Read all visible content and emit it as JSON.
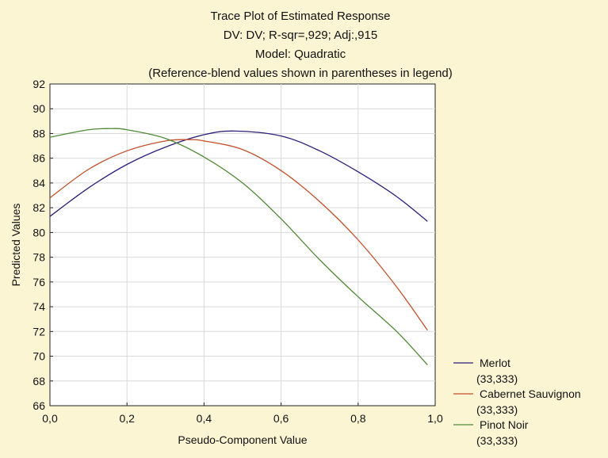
{
  "chart_data": {
    "type": "line",
    "title_lines": [
      "Trace Plot of Estimated Response",
      "DV: DV; R-sqr=,929; Adj:,915",
      "Model: Quadratic",
      "(Reference-blend values shown in parentheses in legend)"
    ],
    "xlabel": "Pseudo-Component Value",
    "ylabel": "Predicted Values",
    "xlim": [
      0,
      1
    ],
    "ylim": [
      66,
      92
    ],
    "grid": true,
    "legend_position": "bottom-right",
    "x_tick_labels": [
      "0,0",
      "0,2",
      "0,4",
      "0,6",
      "0,8",
      "1,0"
    ],
    "y_tick_labels": [
      "66",
      "68",
      "70",
      "72",
      "74",
      "76",
      "78",
      "80",
      "82",
      "84",
      "86",
      "88",
      "90",
      "92"
    ],
    "x_ticks": [
      0,
      0.2,
      0.4,
      0.6,
      0.8,
      1.0
    ],
    "y_ticks": [
      66,
      68,
      70,
      72,
      74,
      76,
      78,
      80,
      82,
      84,
      86,
      88,
      90,
      92
    ],
    "series": [
      {
        "name": "Merlot",
        "reference": "(33,333)",
        "color": "#2b1f7a",
        "x": [
          0.0,
          0.1,
          0.2,
          0.3,
          0.4,
          0.48,
          0.6,
          0.7,
          0.8,
          0.9,
          0.98
        ],
        "y": [
          81.3,
          83.6,
          85.5,
          86.9,
          87.9,
          88.2,
          87.8,
          86.6,
          84.9,
          82.9,
          80.9
        ]
      },
      {
        "name": "Cabernet Sauvignon",
        "reference": "(33,333)",
        "color": "#c0502a",
        "x": [
          0.0,
          0.1,
          0.2,
          0.3,
          0.36,
          0.4,
          0.5,
          0.6,
          0.7,
          0.8,
          0.9,
          0.98
        ],
        "y": [
          82.8,
          85.1,
          86.6,
          87.4,
          87.5,
          87.4,
          86.7,
          85.0,
          82.5,
          79.4,
          75.6,
          72.1
        ]
      },
      {
        "name": "Pinot Noir",
        "reference": "(33,333)",
        "color": "#4f8a36",
        "x": [
          0.0,
          0.1,
          0.16,
          0.2,
          0.3,
          0.4,
          0.5,
          0.6,
          0.7,
          0.8,
          0.9,
          0.98
        ],
        "y": [
          87.7,
          88.3,
          88.4,
          88.3,
          87.6,
          86.1,
          84.0,
          81.1,
          77.8,
          74.8,
          72.0,
          69.3
        ]
      }
    ]
  }
}
